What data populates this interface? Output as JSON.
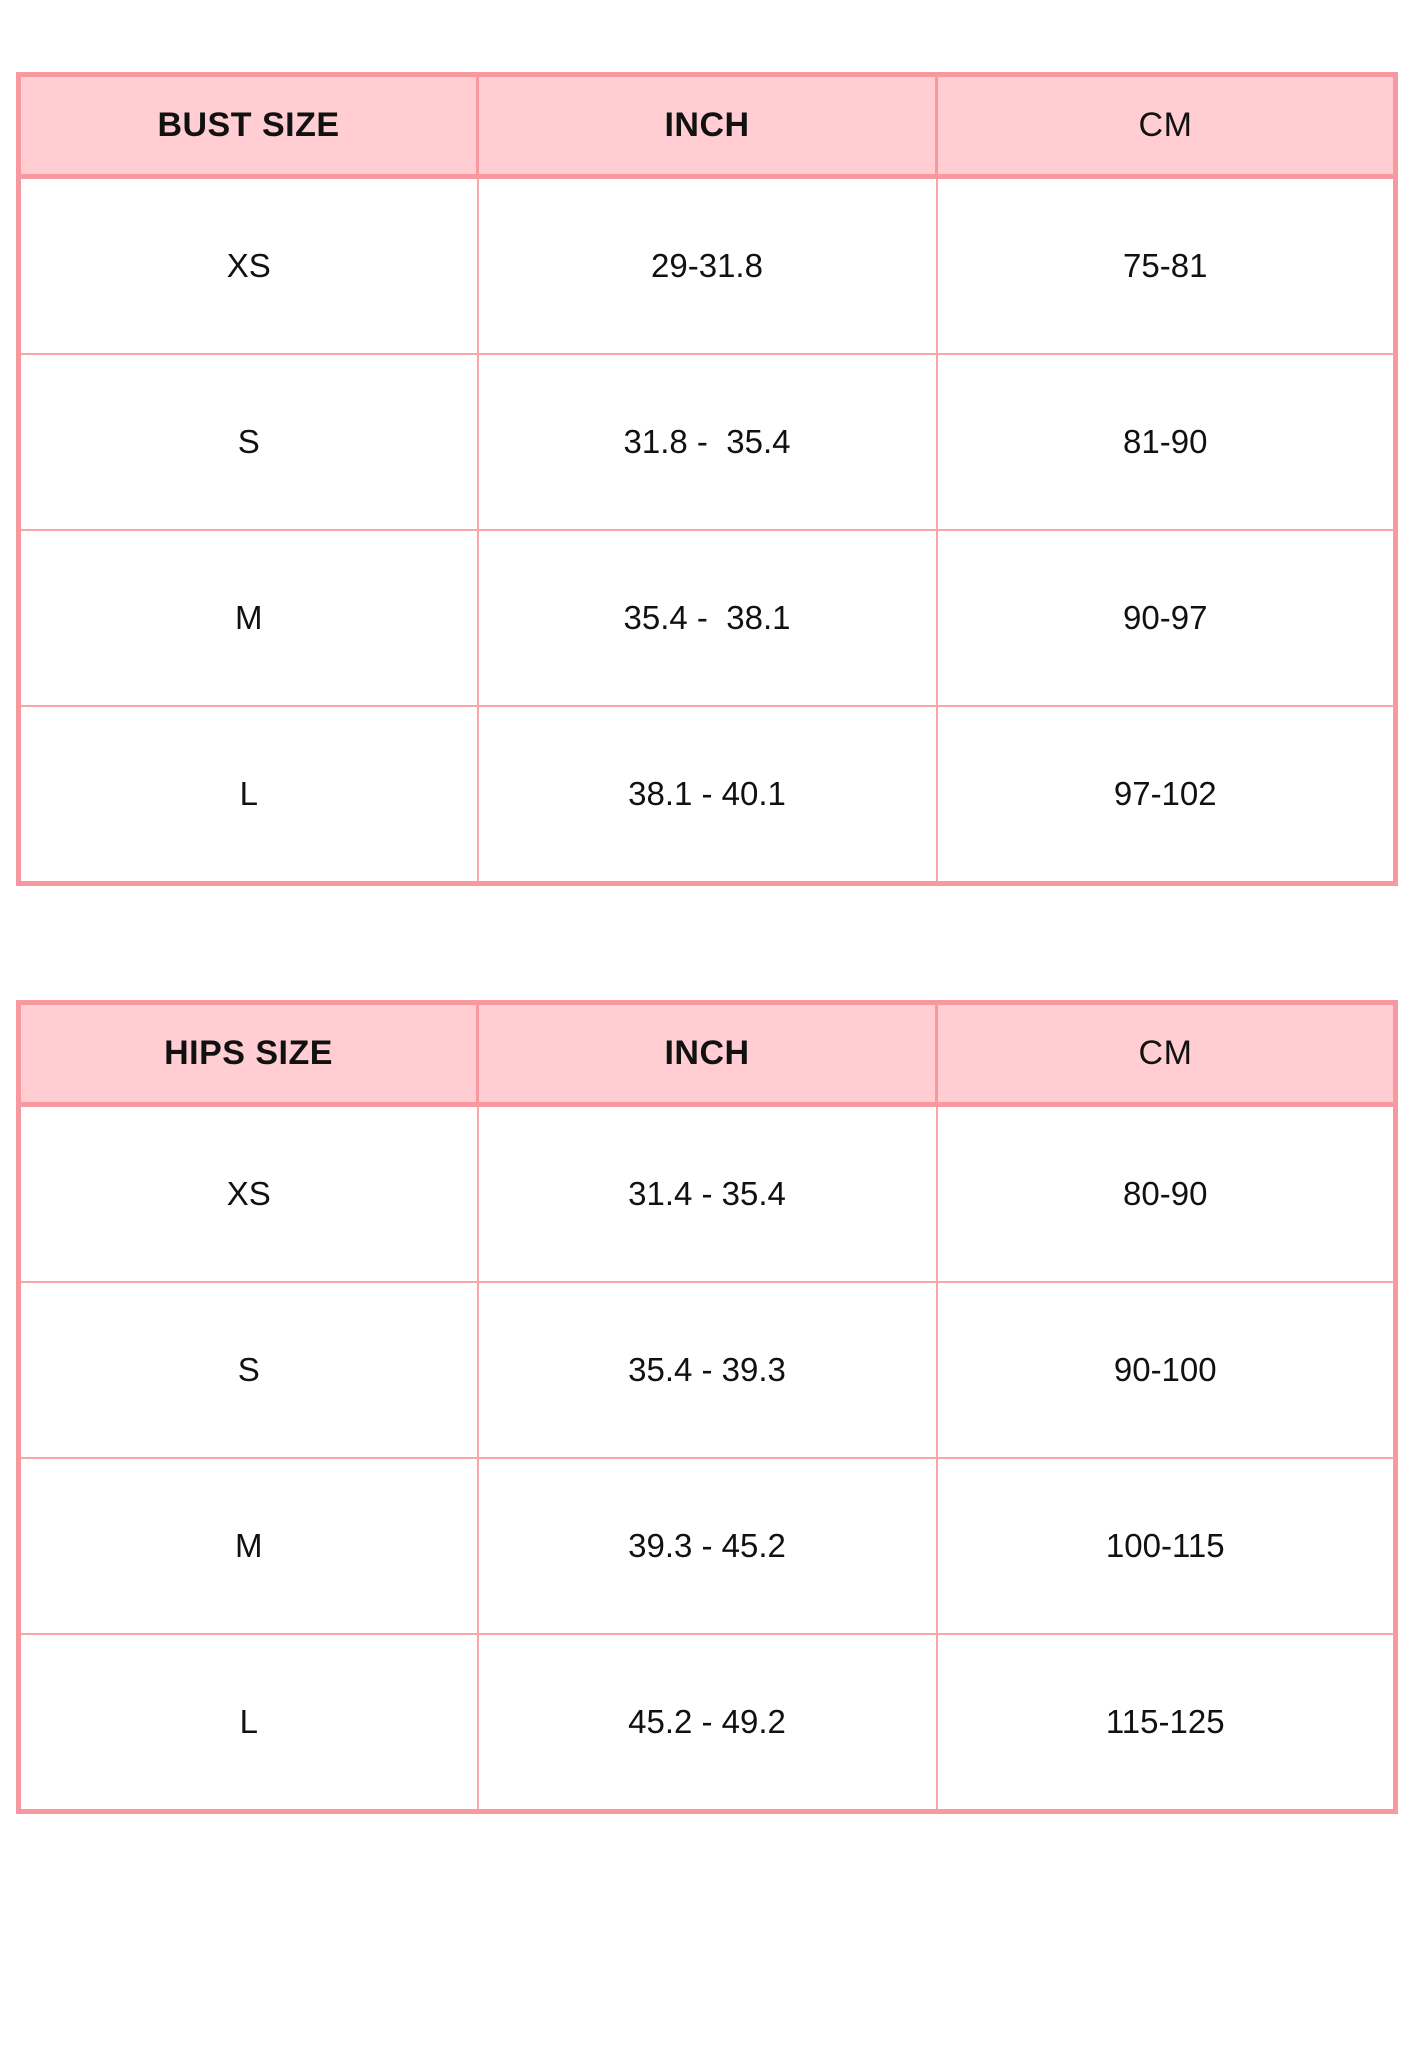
{
  "page": {
    "background": "#ffffff"
  },
  "colors": {
    "header_fill": "#ffcdd2",
    "border_outer": "#f8989f",
    "border_inner": "#fba6ab",
    "text": "#111111"
  },
  "chart_data": [
    {
      "type": "table",
      "columns": [
        "BUST SIZE",
        "INCH",
        "CM"
      ],
      "rows": [
        {
          "size": "XS",
          "inch": "29-31.8",
          "cm": "75-81"
        },
        {
          "size": "S",
          "inch": "31.8 -  35.4",
          "cm": "81-90"
        },
        {
          "size": "M",
          "inch": "35.4 -  38.1",
          "cm": "90-97"
        },
        {
          "size": "L",
          "inch": "38.1 - 40.1",
          "cm": "97-102"
        }
      ]
    },
    {
      "type": "table",
      "columns": [
        "HIPS SIZE",
        "INCH",
        "CM"
      ],
      "rows": [
        {
          "size": "XS",
          "inch": "31.4 - 35.4",
          "cm": "80-90"
        },
        {
          "size": "S",
          "inch": "35.4 - 39.3",
          "cm": "90-100"
        },
        {
          "size": "M",
          "inch": "39.3 - 45.2",
          "cm": "100-115"
        },
        {
          "size": "L",
          "inch": "45.2 - 49.2",
          "cm": "115-125"
        }
      ]
    }
  ]
}
